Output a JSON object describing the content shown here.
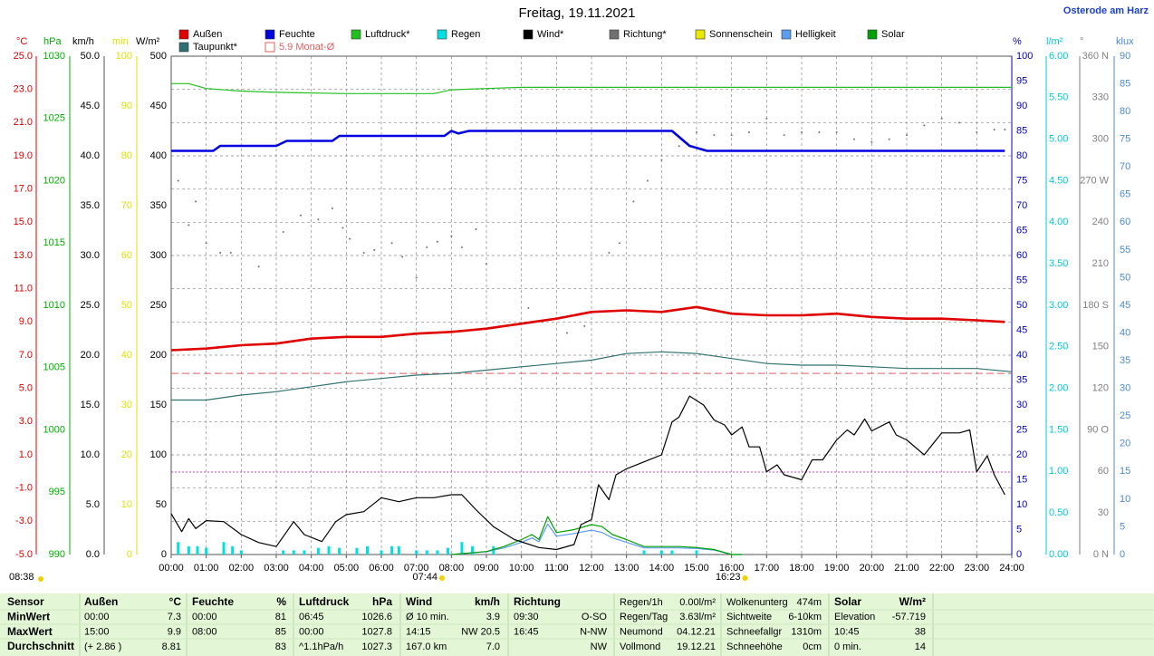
{
  "chart_data": {
    "type": "line",
    "title": "Freitag, 19.11.2021",
    "location": "Osterode am Harz",
    "grid": true,
    "xlim": [
      0,
      24
    ],
    "xticks": [
      {
        "value": 0,
        "label": "00:00"
      },
      {
        "value": 1,
        "label": "01:00"
      },
      {
        "value": 2,
        "label": "02:00"
      },
      {
        "value": 3,
        "label": "03:00"
      },
      {
        "value": 4,
        "label": "04:00"
      },
      {
        "value": 5,
        "label": "05:00"
      },
      {
        "value": 6,
        "label": "06:00"
      },
      {
        "value": 7,
        "label": "07:00"
      },
      {
        "value": 8,
        "label": "08:00"
      },
      {
        "value": 9,
        "label": "09:00"
      },
      {
        "value": 10,
        "label": "10:00"
      },
      {
        "value": 11,
        "label": "11:00"
      },
      {
        "value": 12,
        "label": "12:00"
      },
      {
        "value": 13,
        "label": "13:00"
      },
      {
        "value": 14,
        "label": "14:00"
      },
      {
        "value": 15,
        "label": "15:00"
      },
      {
        "value": 16,
        "label": "16:00"
      },
      {
        "value": 17,
        "label": "17:00"
      },
      {
        "value": 18,
        "label": "18:00"
      },
      {
        "value": 19,
        "label": "19:00"
      },
      {
        "value": 20,
        "label": "20:00"
      },
      {
        "value": 21,
        "label": "21:00"
      },
      {
        "value": 22,
        "label": "22:00"
      },
      {
        "value": 23,
        "label": "23:00"
      },
      {
        "value": 24,
        "label": "24:00"
      }
    ],
    "axes": [
      {
        "label": "°C",
        "color": "#e00000",
        "ylim": [
          -5,
          25
        ],
        "ticks": [
          {
            "value": 25,
            "label": "25.0"
          },
          {
            "value": 23,
            "label": "23.0"
          },
          {
            "value": 21,
            "label": "21.0"
          },
          {
            "value": 19,
            "label": "19.0"
          },
          {
            "value": 17,
            "label": "17.0"
          },
          {
            "value": 15,
            "label": "15.0"
          },
          {
            "value": 13,
            "label": "13.0"
          },
          {
            "value": 11,
            "label": "11.0"
          },
          {
            "value": 9,
            "label": "9.0"
          },
          {
            "value": 7,
            "label": "7.0"
          },
          {
            "value": 5,
            "label": "5.0"
          },
          {
            "value": 3,
            "label": "3.0"
          },
          {
            "value": 1,
            "label": "1.0"
          },
          {
            "value": -1,
            "label": "-1.0"
          },
          {
            "value": -3,
            "label": "-3.0"
          },
          {
            "value": -5,
            "label": "-5.0"
          }
        ]
      },
      {
        "label": "hPa",
        "color": "#00b000",
        "ylim": [
          990,
          1030
        ],
        "ticks": [
          1030,
          1025,
          1020,
          1015,
          1010,
          1005,
          1000,
          995,
          990
        ]
      },
      {
        "label": "km/h",
        "color": "#000000",
        "ylim": [
          0,
          50
        ],
        "ticks": [
          {
            "value": 50,
            "label": "50.0"
          },
          {
            "value": 45,
            "label": "45.0"
          },
          {
            "value": 40,
            "label": "40.0"
          },
          {
            "value": 35,
            "label": "35.0"
          },
          {
            "value": 30,
            "label": "30.0"
          },
          {
            "value": 25,
            "label": "25.0"
          },
          {
            "value": 20,
            "label": "20.0"
          },
          {
            "value": 15,
            "label": "15.0"
          },
          {
            "value": 10,
            "label": "10.0"
          },
          {
            "value": 5,
            "label": "5.0"
          },
          {
            "value": 0,
            "label": "0.0"
          }
        ]
      },
      {
        "label": "min",
        "color": "#e0e000",
        "ylim": [
          0,
          100
        ],
        "ticks": [
          100,
          90,
          80,
          70,
          60,
          50,
          40,
          30,
          20,
          10,
          0
        ]
      },
      {
        "label": "W/m²",
        "color": "#000000",
        "ylim": [
          0,
          500
        ],
        "ticks": [
          500,
          450,
          400,
          350,
          300,
          250,
          200,
          150,
          100,
          50,
          0
        ]
      },
      {
        "label": "%",
        "color": "#0000c0",
        "ylim": [
          0,
          100
        ],
        "ticks": [
          100,
          95,
          90,
          85,
          80,
          75,
          70,
          65,
          60,
          55,
          50,
          45,
          40,
          35,
          30,
          25,
          20,
          15,
          10,
          5,
          0
        ]
      },
      {
        "label": "l/m²",
        "color": "#00c8d8",
        "ylim": [
          0,
          6
        ],
        "ticks": [
          {
            "value": 6,
            "label": "6.00"
          },
          {
            "value": 5.5,
            "label": "5.50"
          },
          {
            "value": 5,
            "label": "5.00"
          },
          {
            "value": 4.5,
            "label": "4.50"
          },
          {
            "value": 4,
            "label": "4.00"
          },
          {
            "value": 3.5,
            "label": "3.50"
          },
          {
            "value": 3,
            "label": "3.00"
          },
          {
            "value": 2.5,
            "label": "2.50"
          },
          {
            "value": 2,
            "label": "2.00"
          },
          {
            "value": 1.5,
            "label": "1.50"
          },
          {
            "value": 1,
            "label": "1.00"
          },
          {
            "value": 0.5,
            "label": "0.50"
          },
          {
            "value": 0,
            "label": "0.00"
          }
        ]
      },
      {
        "label": "°",
        "color": "#808080",
        "ylim": [
          0,
          360
        ],
        "ticks": [
          {
            "value": 360,
            "label": "360 N"
          },
          330,
          300,
          {
            "value": 270,
            "label": "270 W"
          },
          240,
          210,
          {
            "value": 180,
            "label": "180 S"
          },
          150,
          120,
          {
            "value": 90,
            "label": "90 O"
          },
          60,
          30,
          {
            "value": 0,
            "label": "0 N"
          }
        ]
      },
      {
        "label": "klux",
        "color": "#4a8ad0",
        "ylim": [
          0,
          90
        ],
        "ticks": [
          90,
          85,
          80,
          75,
          70,
          65,
          60,
          55,
          50,
          45,
          40,
          35,
          30,
          25,
          20,
          15,
          10,
          5,
          0
        ]
      }
    ],
    "series": [
      {
        "name": "Außen",
        "color": "#e00000",
        "axis": 0,
        "style": "line",
        "x": [
          0,
          1,
          2,
          3,
          4,
          5,
          6,
          7,
          8,
          9,
          10,
          11,
          11.5,
          12,
          13,
          14,
          15,
          16,
          17,
          18,
          19,
          20,
          21,
          22,
          23,
          23.8
        ],
        "values": [
          7.3,
          7.4,
          7.6,
          7.7,
          8.0,
          8.1,
          8.1,
          8.3,
          8.4,
          8.6,
          8.9,
          9.2,
          9.4,
          9.6,
          9.7,
          9.6,
          9.9,
          9.5,
          9.4,
          9.4,
          9.5,
          9.3,
          9.2,
          9.2,
          9.1,
          9.0
        ]
      },
      {
        "name": "Feuchte",
        "color": "#0000e0",
        "axis": 5,
        "style": "line",
        "x": [
          0,
          1.2,
          1.4,
          3.0,
          3.3,
          4.6,
          4.8,
          7.8,
          8.0,
          8.2,
          8.5,
          14.3,
          14.8,
          15.3,
          23.8
        ],
        "values": [
          81,
          81,
          82,
          82,
          83,
          83,
          84,
          84,
          85,
          84.5,
          85,
          85,
          82,
          81,
          81
        ]
      },
      {
        "name": "Luftdruck*",
        "color": "#20c020",
        "axis": 1,
        "style": "line",
        "x": [
          0,
          0.5,
          1,
          2,
          3,
          5,
          7.5,
          8,
          9,
          10,
          12,
          24
        ],
        "values": [
          1027.8,
          1027.8,
          1027.4,
          1027.2,
          1027.1,
          1027.0,
          1027.0,
          1027.3,
          1027.4,
          1027.5,
          1027.5,
          1027.5
        ]
      },
      {
        "name": "Regen",
        "color": "#00e0e0",
        "axis": 6,
        "style": "bars",
        "x": [
          0.2,
          0.5,
          0.75,
          1.0,
          1.5,
          1.75,
          2.0,
          3.2,
          3.5,
          3.8,
          4.2,
          4.5,
          4.8,
          5.3,
          5.6,
          6.0,
          6.3,
          6.5,
          7.0,
          7.3,
          7.6,
          7.9,
          8.3,
          8.6,
          9.2,
          13.5,
          14.0,
          14.3,
          15.0
        ],
        "values": [
          0.15,
          0.1,
          0.1,
          0.08,
          0.15,
          0.1,
          0.05,
          0.05,
          0.05,
          0.05,
          0.08,
          0.1,
          0.08,
          0.08,
          0.1,
          0.05,
          0.1,
          0.1,
          0.05,
          0.05,
          0.05,
          0.08,
          0.15,
          0.1,
          0.1,
          0.05,
          0.05,
          0.05,
          0.05
        ]
      },
      {
        "name": "Wind*",
        "color": "#000000",
        "axis": 2,
        "style": "line",
        "x": [
          0,
          0.3,
          0.5,
          0.7,
          1.0,
          1.5,
          2,
          2.5,
          3,
          3.5,
          3.8,
          4.3,
          4.7,
          5,
          5.5,
          6,
          6.5,
          7,
          7.5,
          8,
          8.3,
          8.7,
          9.2,
          9.8,
          10.5,
          11,
          11.5,
          11.7,
          12,
          12.2,
          12.5,
          12.7,
          13,
          13.5,
          14,
          14.3,
          14.5,
          14.8,
          15.2,
          15.5,
          15.8,
          16,
          16.3,
          16.5,
          16.8,
          17,
          17.3,
          17.5,
          18,
          18.3,
          18.6,
          19,
          19.3,
          19.5,
          19.8,
          20,
          20.5,
          20.7,
          21,
          21.5,
          22,
          22.5,
          22.8,
          23,
          23.3,
          23.5,
          23.8
        ],
        "values": [
          4.1,
          2.3,
          3.6,
          2.6,
          3.4,
          3.3,
          2.0,
          1.2,
          0.8,
          3.3,
          2.0,
          1.3,
          3.3,
          4.0,
          4.3,
          5.7,
          5.3,
          5.7,
          5.7,
          6.0,
          6.0,
          4.5,
          2.8,
          1.5,
          0.7,
          0.5,
          1.0,
          3.0,
          3.5,
          7.0,
          5.5,
          8.0,
          8.6,
          9.3,
          10.0,
          13.3,
          13.8,
          15.9,
          15.0,
          13.5,
          13.0,
          12.0,
          12.8,
          10.8,
          10.8,
          8.3,
          9.0,
          8.0,
          7.5,
          9.5,
          9.5,
          11.5,
          12.5,
          12.0,
          13.6,
          12.4,
          13.3,
          12.0,
          11.5,
          10.0,
          12.2,
          12.2,
          12.5,
          8.3,
          9.9,
          8.0,
          6.0
        ]
      },
      {
        "name": "Richtung*",
        "color": "#707070",
        "axis": 7,
        "style": "dots",
        "x": [
          0.2,
          0.5,
          0.7,
          1.0,
          1.4,
          1.7,
          2.5,
          3.2,
          3.7,
          4.2,
          4.6,
          4.9,
          5.1,
          5.5,
          5.8,
          6.3,
          6.6,
          7.0,
          7.3,
          7.6,
          8.0,
          8.3,
          8.7,
          9.0,
          10.2,
          10.6,
          11.3,
          11.8,
          12.5,
          12.8,
          13.2,
          13.6,
          14.0,
          14.5,
          15.0,
          15.5,
          16.0,
          16.5,
          17.0,
          17.5,
          18.0,
          18.5,
          19.0,
          19.5,
          20.0,
          20.5,
          21.0,
          21.5,
          22.0,
          22.5,
          23.0,
          23.5,
          23.8
        ],
        "values": [
          270,
          238,
          255,
          225,
          218,
          218,
          208,
          233,
          245,
          242,
          250,
          236,
          228,
          218,
          220,
          225,
          215,
          200,
          222,
          226,
          230,
          222,
          235,
          210,
          178,
          168,
          160,
          165,
          218,
          225,
          255,
          270,
          285,
          295,
          305,
          303,
          303,
          305,
          315,
          303,
          305,
          305,
          305,
          300,
          298,
          300,
          303,
          310,
          315,
          312,
          305,
          307,
          307
        ]
      },
      {
        "name": "Sonnenschein",
        "color": "#e8e800",
        "axis": 3,
        "style": "line",
        "x": [],
        "values": []
      },
      {
        "name": "Helligkeit",
        "color": "#5a9cf0",
        "axis": 8,
        "style": "line",
        "x": [
          8,
          9,
          9.5,
          10,
          10.3,
          10.5,
          10.75,
          11,
          11.5,
          12,
          12.3,
          12.6,
          13,
          13.5,
          14,
          14.5,
          15,
          15.5,
          16,
          16.3
        ],
        "values": [
          0,
          0.5,
          1.2,
          2.2,
          3.0,
          2.3,
          5.5,
          3.3,
          3.8,
          4.4,
          4.0,
          3.0,
          2.2,
          1.2,
          1.2,
          1.2,
          1.1,
          0.8,
          0,
          0
        ]
      },
      {
        "name": "Solar",
        "color": "#00a000",
        "axis": 4,
        "style": "line",
        "x": [
          8,
          9,
          9.5,
          10,
          10.3,
          10.5,
          10.75,
          11,
          11.5,
          12,
          12.3,
          12.6,
          13,
          13.5,
          14,
          14.5,
          15,
          15.5,
          16,
          16.3
        ],
        "values": [
          0,
          3,
          8,
          15,
          20,
          15,
          38,
          22,
          25,
          30,
          28,
          20,
          15,
          8,
          8,
          8,
          7,
          5,
          0,
          0
        ]
      },
      {
        "name": "Taupunkt*",
        "color": "#2f7070",
        "axis": 0,
        "style": "line",
        "x": [
          0,
          1,
          2,
          3,
          4,
          5,
          6,
          7,
          8,
          9,
          10,
          11,
          12,
          13,
          14,
          15,
          16,
          17,
          18,
          19,
          20,
          21,
          22,
          23,
          24
        ],
        "values": [
          4.3,
          4.3,
          4.6,
          4.8,
          5.1,
          5.4,
          5.6,
          5.8,
          5.9,
          6.1,
          6.3,
          6.5,
          6.7,
          7.1,
          7.2,
          7.1,
          6.8,
          6.5,
          6.4,
          6.4,
          6.3,
          6.2,
          6.2,
          6.2,
          6.0
        ]
      }
    ],
    "reference": {
      "label": "5.9 Monat-Ø",
      "value": 5.9,
      "axis": 0,
      "color": "#e06060"
    },
    "day_length": "08:38",
    "sunrise": {
      "value": 7.733,
      "label": "07:44"
    },
    "sunset": {
      "value": 16.383,
      "label": "16:23"
    }
  },
  "table": {
    "rows": [
      [
        "Sensor",
        null,
        "Außen",
        "°C",
        "Feuchte",
        "%",
        "Luftdruck",
        "hPa",
        "Wind",
        "km/h",
        "Richtung",
        null,
        "Regen/1h",
        "0.00l/m²",
        "Wolkenunterg",
        "474m",
        "Solar",
        "W/m²"
      ],
      [
        "MinWert",
        null,
        "00:00",
        "7.3",
        "00:00",
        "81",
        "06:45",
        "1026.6",
        "Ø 10 min.",
        "3.9",
        "09:30",
        "O-SO",
        "Regen/Tag",
        "3.63l/m²",
        "Sichtweite",
        "6-10km",
        "Elevation",
        "-57.719"
      ],
      [
        "MaxWert",
        null,
        "15:00",
        "9.9",
        "08:00",
        "85",
        "00:00",
        "1027.8",
        "14:15",
        "NW 20.5",
        "16:45",
        "N-NW",
        "Neumond",
        "04.12.21",
        "Schneefallgr",
        "1310m",
        "10:45",
        "38"
      ],
      [
        "Durchschnitt",
        null,
        "(+ 2.86 )",
        "8.81",
        null,
        "83",
        "^1.1hPa/h",
        "1027.3",
        "167.0 km",
        "7.0",
        null,
        "NW",
        "Vollmond",
        "19.12.21",
        "Schneehöhe",
        "0cm",
        "0 min.",
        "14"
      ]
    ]
  }
}
